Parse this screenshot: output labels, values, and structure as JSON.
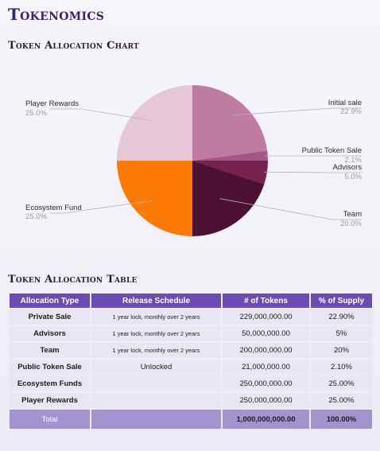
{
  "page": {
    "title": "Tokenomics",
    "chart_heading": "Token Allocation Chart",
    "table_heading": "Token Allocation Table"
  },
  "chart_data": {
    "type": "pie",
    "title": "",
    "slices": [
      {
        "label": "Initial sale",
        "value": 22.9,
        "display": "22.9%",
        "color": "#c07ba1"
      },
      {
        "label": "Public Token Sale",
        "value": 2.1,
        "display": "2.1%",
        "color": "#a45687"
      },
      {
        "label": "Advisors",
        "value": 5.0,
        "display": "5.0%",
        "color": "#77214e"
      },
      {
        "label": "Team",
        "value": 20.0,
        "display": "20.0%",
        "color": "#4d1233"
      },
      {
        "label": "Ecosystem Fund",
        "value": 25.0,
        "display": "25.0%",
        "color": "#fb7a08"
      },
      {
        "label": "Player Rewards",
        "value": 25.0,
        "display": "25.0%",
        "color": "#e5c7d5"
      }
    ],
    "start": "12 o'clock",
    "direction": "clockwise",
    "legend": "none"
  },
  "table": {
    "headers": [
      "Allocation Type",
      "Release Schedule",
      "# of Tokens",
      "% of Supply"
    ],
    "rows": [
      [
        "Private Sale",
        "1 year lock, monthly over 2 years",
        "229,000,000.00",
        "22.90%"
      ],
      [
        "Advisors",
        "1 year lock, monthly over 2 years",
        "50,000,000.00",
        "5%"
      ],
      [
        "Team",
        "1 year lock, monthly over 2 years",
        "200,000,000.00",
        "20%"
      ],
      [
        "Public Token Sale",
        "Unlocked",
        "21,000,000.00",
        "2.10%"
      ],
      [
        "Ecosystem Funds",
        "",
        "250,000,000.00",
        "25.00%"
      ],
      [
        "Player Rewards",
        "",
        "250,000,000.00",
        "25.00%"
      ]
    ],
    "total": [
      "Total",
      "",
      "1,000,000,000.00",
      "100.00%"
    ],
    "header_color": "#6d4bb4",
    "cell_color": "#e9e6f3",
    "total_color": "#a394cf"
  }
}
